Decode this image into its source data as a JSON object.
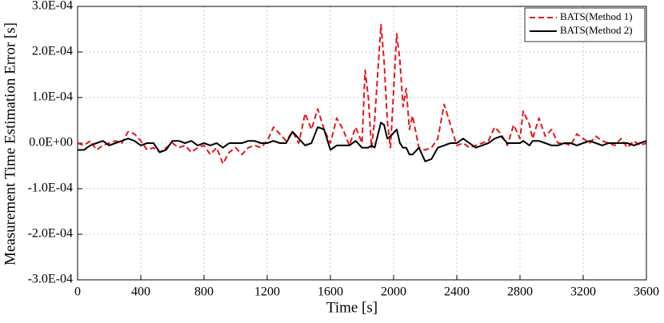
{
  "chart_data": {
    "type": "line",
    "xlabel": "Time [s]",
    "ylabel": "Measurement Time Estimation Error [s]",
    "x": [
      0,
      40,
      80,
      120,
      160,
      200,
      240,
      280,
      320,
      360,
      400,
      440,
      480,
      520,
      560,
      600,
      640,
      680,
      720,
      760,
      800,
      840,
      880,
      920,
      960,
      1000,
      1040,
      1080,
      1120,
      1160,
      1200,
      1240,
      1280,
      1320,
      1360,
      1400,
      1440,
      1480,
      1520,
      1560,
      1600,
      1640,
      1680,
      1720,
      1760,
      1800,
      1820,
      1840,
      1860,
      1880,
      1920,
      1940,
      1960,
      1980,
      2020,
      2040,
      2060,
      2080,
      2100,
      2120,
      2160,
      2200,
      2240,
      2280,
      2320,
      2360,
      2400,
      2440,
      2480,
      2520,
      2560,
      2600,
      2640,
      2680,
      2720,
      2760,
      2800,
      2820,
      2860,
      2880,
      2920,
      2960,
      3000,
      3040,
      3080,
      3120,
      3160,
      3200,
      3240,
      3280,
      3320,
      3360,
      3400,
      3440,
      3480,
      3520,
      3560,
      3600
    ],
    "series": [
      {
        "name": "BATS(Method 1)",
        "color": "#e8141a",
        "dash": true,
        "values": [
          0,
          -5e-06,
          5e-06,
          -1.5e-05,
          -5e-06,
          0,
          5e-06,
          0,
          2.5e-05,
          2e-05,
          5e-06,
          -1.5e-05,
          -1e-05,
          -2e-05,
          -1e-05,
          0,
          -1e-05,
          -5e-06,
          -2e-05,
          -1e-05,
          -5e-06,
          -2.5e-05,
          -1e-05,
          -4.5e-05,
          -2e-05,
          -1e-05,
          -2.5e-05,
          -1e-05,
          -5e-06,
          -1e-05,
          5e-06,
          3.5e-05,
          2e-05,
          5e-06,
          2.5e-05,
          0,
          6.5e-05,
          3e-05,
          7.5e-05,
          3e-05,
          0,
          5.5e-05,
          3e-05,
          -5e-06,
          3.5e-05,
          0,
          0.00016,
          0.0001,
          -1e-05,
          5e-05,
          0.00026,
          0.00018,
          5e-05,
          -1e-05,
          0.00024,
          0.00018,
          8e-05,
          0.00012,
          3e-05,
          6e-05,
          -1e-05,
          -1.5e-05,
          -1e-05,
          1e-05,
          8.5e-05,
          4e-05,
          -5e-06,
          0,
          -1e-05,
          -5e-06,
          0,
          5e-06,
          3.5e-05,
          2e-05,
          -5e-06,
          4e-05,
          1e-05,
          7e-05,
          4e-05,
          1e-05,
          5.5e-05,
          1.5e-05,
          3e-05,
          0,
          0,
          -5e-06,
          2e-05,
          1e-05,
          0,
          1.5e-05,
          5e-06,
          0,
          -5e-06,
          1e-05,
          -1e-05,
          5e-06,
          -5e-06,
          0
        ]
      },
      {
        "name": "BATS(Method 2)",
        "color": "#000000",
        "dash": false,
        "values": [
          -1.5e-05,
          -1.5e-05,
          -5e-06,
          0,
          5e-06,
          -5e-06,
          0,
          5e-06,
          1e-05,
          5e-06,
          -5e-06,
          0,
          0,
          -2e-05,
          -1.5e-05,
          5e-06,
          5e-06,
          0,
          5e-06,
          -5e-06,
          0,
          -5e-06,
          0,
          -1e-05,
          0,
          0,
          0,
          5e-06,
          5e-06,
          0,
          0,
          5e-06,
          0,
          0,
          2.5e-05,
          1e-05,
          -5e-06,
          0,
          3.5e-05,
          3e-05,
          -1.5e-05,
          -5e-06,
          -5e-06,
          -5e-06,
          5e-06,
          -1e-05,
          -1e-05,
          -1e-05,
          -5e-06,
          -1e-05,
          4.5e-05,
          4e-05,
          1e-05,
          1.5e-05,
          3e-05,
          0,
          -1e-05,
          -1e-05,
          -2.5e-05,
          -2.5e-05,
          -1e-05,
          -4e-05,
          -3.5e-05,
          -1e-05,
          -5e-06,
          0,
          0,
          1e-05,
          0,
          -1e-05,
          -5e-06,
          0,
          1e-05,
          1.5e-05,
          0,
          0,
          0,
          5e-06,
          -5e-06,
          5e-06,
          5e-06,
          0,
          -5e-06,
          -5e-06,
          0,
          0,
          -5e-06,
          0,
          5e-06,
          0,
          -5e-06,
          0,
          0,
          0,
          0,
          -5e-06,
          0,
          5e-06
        ]
      }
    ],
    "xlim": [
      0,
      3600
    ],
    "xticks": [
      0,
      400,
      800,
      1200,
      1600,
      2000,
      2400,
      2800,
      3200,
      3600
    ],
    "ylim": [
      -0.0003,
      0.0003
    ],
    "yticks": [
      {
        "value": -0.0003,
        "label": "-3.0E-04"
      },
      {
        "value": -0.0002,
        "label": "-2.0E-04"
      },
      {
        "value": -0.0001,
        "label": "-1.0E-04"
      },
      {
        "value": 0,
        "label": "0.0E+00"
      },
      {
        "value": 0.0001,
        "label": "1.0E-04"
      },
      {
        "value": 0.0002,
        "label": "2.0E-04"
      },
      {
        "value": 0.0003,
        "label": "3.0E-04"
      }
    ],
    "grid": true,
    "legend": "upper right"
  }
}
